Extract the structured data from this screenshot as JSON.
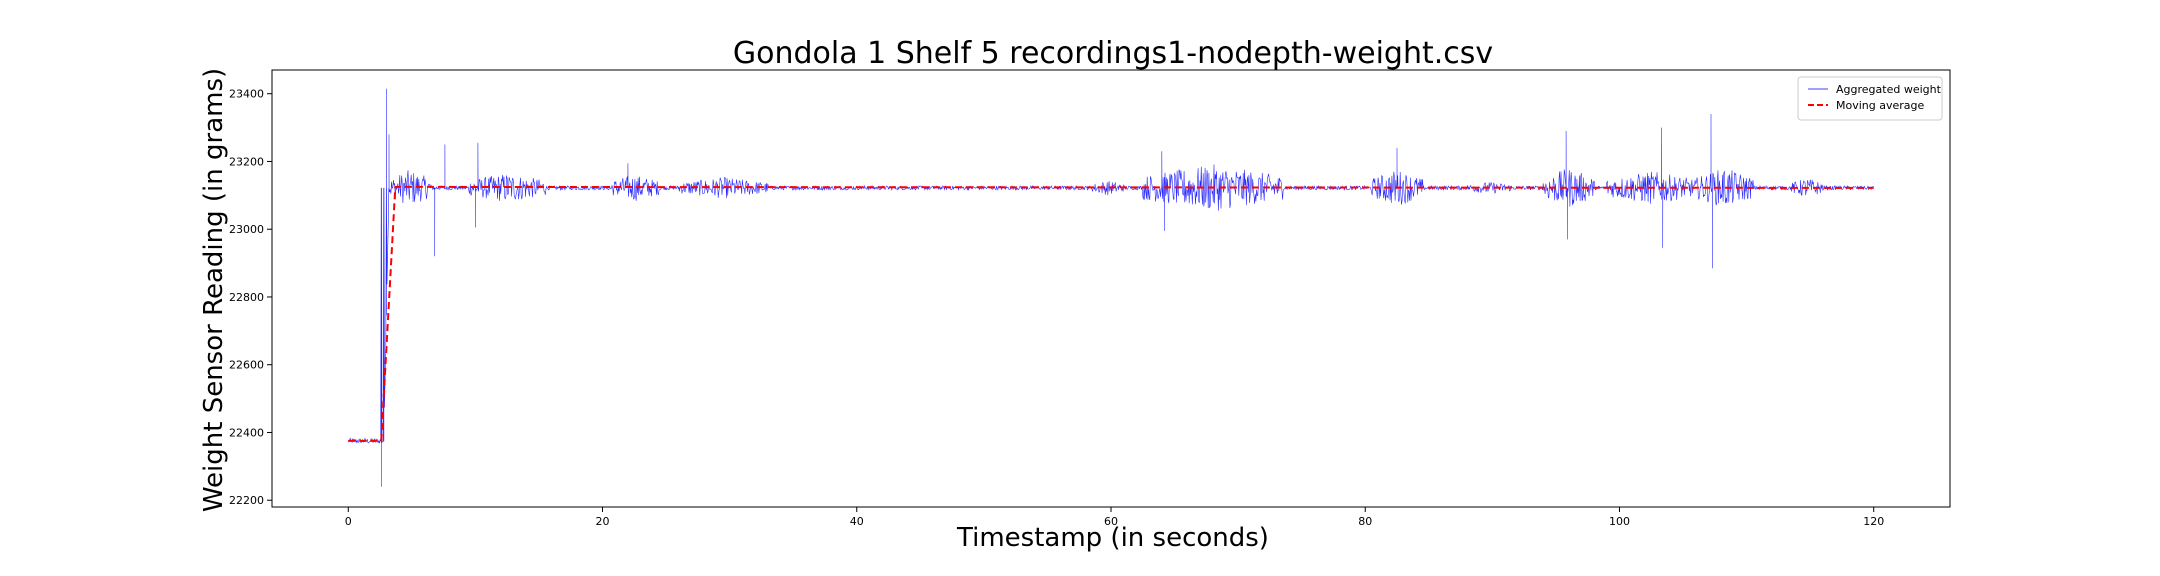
{
  "chart_data": {
    "type": "line",
    "title": "Gondola 1 Shelf 5 recordings1-nodepth-weight.csv",
    "xlabel": "Timestamp (in seconds)",
    "ylabel": "Weight Sensor Reading (in grams)",
    "xlim": [
      -6,
      126
    ],
    "ylim": [
      22180,
      23470
    ],
    "xticks": [
      0,
      20,
      40,
      60,
      80,
      100,
      120
    ],
    "yticks": [
      22200,
      22400,
      22600,
      22800,
      23000,
      23200,
      23400
    ],
    "grid": false,
    "legend_position": "upper-right",
    "series": [
      {
        "name": "Aggregated weight",
        "color": "#0000ff",
        "style": "solid",
        "x_range": [
          0,
          120
        ],
        "baseline_before": 22375,
        "baseline_after": 23122,
        "step_at": 2.8,
        "spikes": [
          {
            "x": 2.6,
            "y": 22240
          },
          {
            "x": 2.8,
            "y": 22930
          },
          {
            "x": 3.0,
            "y": 23415
          },
          {
            "x": 3.2,
            "y": 23280
          },
          {
            "x": 6.8,
            "y": 22920
          },
          {
            "x": 7.6,
            "y": 23250
          },
          {
            "x": 10.2,
            "y": 23255
          },
          {
            "x": 10.0,
            "y": 23005
          },
          {
            "x": 22.0,
            "y": 23195
          },
          {
            "x": 64.0,
            "y": 23230
          },
          {
            "x": 64.2,
            "y": 22995
          },
          {
            "x": 82.5,
            "y": 23240
          },
          {
            "x": 95.8,
            "y": 23290
          },
          {
            "x": 95.9,
            "y": 22970
          },
          {
            "x": 103.3,
            "y": 23300
          },
          {
            "x": 103.4,
            "y": 22945
          },
          {
            "x": 107.2,
            "y": 23340
          },
          {
            "x": 107.3,
            "y": 22885
          }
        ],
        "noise_bursts": [
          {
            "from": 3.2,
            "to": 6.5,
            "amp": 55
          },
          {
            "from": 9.5,
            "to": 15.5,
            "amp": 45
          },
          {
            "from": 20.5,
            "to": 24.5,
            "amp": 40
          },
          {
            "from": 26.0,
            "to": 33.0,
            "amp": 32
          },
          {
            "from": 58.5,
            "to": 61.0,
            "amp": 22
          },
          {
            "from": 62.5,
            "to": 73.5,
            "amp": 70
          },
          {
            "from": 80.5,
            "to": 84.5,
            "amp": 55
          },
          {
            "from": 88.0,
            "to": 91.5,
            "amp": 18
          },
          {
            "from": 94.0,
            "to": 98.0,
            "amp": 60
          },
          {
            "from": 99.0,
            "to": 106.0,
            "amp": 50
          },
          {
            "from": 106.0,
            "to": 110.5,
            "amp": 60
          },
          {
            "from": 113.5,
            "to": 116.0,
            "amp": 30
          }
        ]
      },
      {
        "name": "Moving average",
        "color": "#ff0000",
        "style": "dashed",
        "x": [
          0,
          2.6,
          3.7,
          120
        ],
        "values": [
          22375,
          22375,
          23125,
          23122
        ]
      }
    ]
  }
}
